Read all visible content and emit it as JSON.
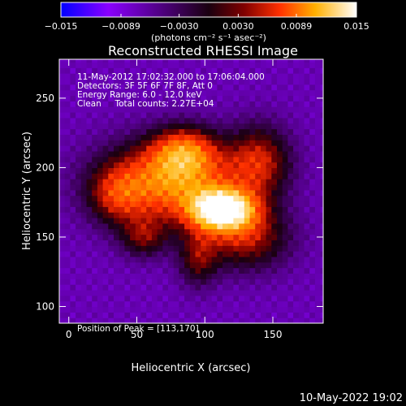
{
  "chart_data": {
    "type": "heatmap",
    "title": "Reconstructed RHESSI Image",
    "xlabel": "Heliocentric X (arcsec)",
    "ylabel": "Heliocentric Y (arcsec)",
    "xlim": [
      -7,
      187
    ],
    "ylim": [
      88,
      278
    ],
    "xticks": [
      0,
      50,
      100,
      150
    ],
    "yticks": [
      100,
      150,
      200,
      250
    ],
    "colorbar": {
      "range": [
        -0.015,
        0.015
      ],
      "tick_labels": [
        "-0.015",
        "-0.0089",
        "-0.0030",
        "0.0030",
        "0.0089",
        "0.015"
      ],
      "unit_label": "(photons cm⁻² s⁻¹ asec⁻²)",
      "colormap": [
        "#0000ff",
        "#8a00ff",
        "#1a0010",
        "#800000",
        "#ff3000",
        "#ffb000",
        "#ffffff"
      ]
    },
    "annotations": [
      "11-May-2012 17:02:32.000 to 17:06:04.000",
      "Detectors: 3F 5F 6F 7F 8F, Att 0",
      "Energy Range: 6.0 - 12.0 keV",
      "Clean     Total counts: 2.27E+04"
    ],
    "peak_label": "Position of Peak = [113,170]",
    "peak": [
      113,
      170
    ],
    "emission_sources": [
      {
        "x": 113,
        "y": 170,
        "peak_value": 0.015,
        "sigma_x": 16,
        "sigma_y": 10
      },
      {
        "x": 75,
        "y": 190,
        "peak_value": 0.0095,
        "sigma_x": 34,
        "sigma_y": 20
      },
      {
        "x": 85,
        "y": 212,
        "peak_value": 0.0065,
        "sigma_x": 16,
        "sigma_y": 12
      },
      {
        "x": 140,
        "y": 205,
        "peak_value": 0.0055,
        "sigma_x": 16,
        "sigma_y": 18
      },
      {
        "x": 130,
        "y": 150,
        "peak_value": 0.0055,
        "sigma_x": 22,
        "sigma_y": 16
      },
      {
        "x": 55,
        "y": 150,
        "peak_value": 0.004,
        "sigma_x": 12,
        "sigma_y": 10
      },
      {
        "x": 95,
        "y": 135,
        "peak_value": 0.004,
        "sigma_x": 10,
        "sigma_y": 14
      },
      {
        "x": 35,
        "y": 180,
        "peak_value": 0.004,
        "sigma_x": 14,
        "sigma_y": 14
      }
    ],
    "background_level": -0.007,
    "grid": false
  },
  "footer": {
    "date": "10-May-2022 19:02"
  }
}
